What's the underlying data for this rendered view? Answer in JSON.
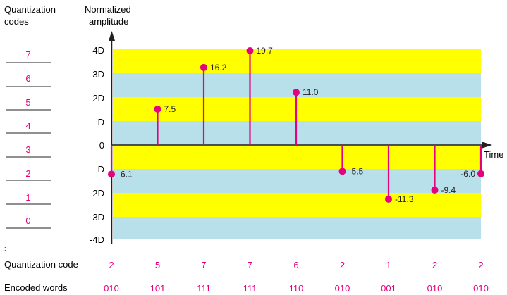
{
  "left_header": [
    "Quantization",
    "codes"
  ],
  "axis_header": [
    "Normalized",
    "amplitude"
  ],
  "time_label": "Time",
  "codes_column": [
    "7",
    "6",
    "5",
    "4",
    "3",
    "2",
    "1",
    "0"
  ],
  "y_ticks": [
    "4D",
    "3D",
    "2D",
    "D",
    "0",
    "-D",
    "-2D",
    "-3D",
    "-4D"
  ],
  "stray_mark": ":",
  "row_labels": {
    "quantization_code": "Quantization code",
    "encoded_words": "Encoded words"
  },
  "colors": {
    "band_yellow": "#ffff00",
    "band_blue": "#b8e0ea",
    "stem": "#e4007f",
    "value_text": "#e4007f",
    "axis": "#231f20"
  },
  "chart_data": {
    "type": "scatter",
    "y_unit": "D",
    "ylim": [
      -4,
      4
    ],
    "samples": [
      {
        "value": -6.1,
        "label": "-6.1",
        "code": "2",
        "word": "010"
      },
      {
        "value": 7.5,
        "label": "7.5",
        "code": "5",
        "word": "101"
      },
      {
        "value": 16.2,
        "label": "16.2",
        "code": "7",
        "word": "111"
      },
      {
        "value": 19.7,
        "label": "19.7",
        "code": "7",
        "word": "111"
      },
      {
        "value": 11.0,
        "label": "11.0",
        "code": "6",
        "word": "110"
      },
      {
        "value": -5.5,
        "label": "-5.5",
        "code": "2",
        "word": "010"
      },
      {
        "value": -11.3,
        "label": "-11.3",
        "code": "1",
        "word": "001"
      },
      {
        "value": -9.4,
        "label": "-9.4",
        "code": "2",
        "word": "010"
      },
      {
        "value": -6.0,
        "label": "-6.0",
        "code": "2",
        "word": "010"
      }
    ]
  }
}
